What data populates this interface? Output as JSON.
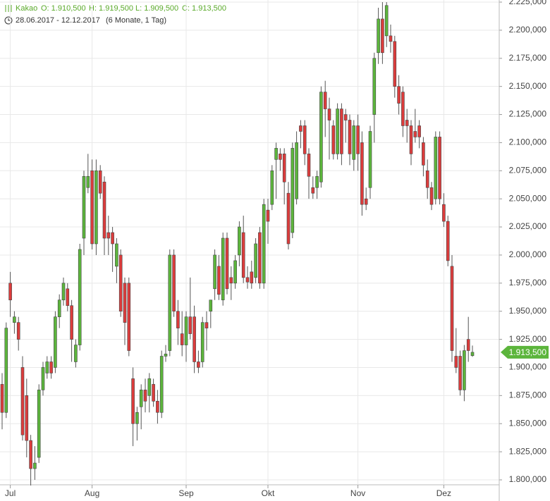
{
  "chart_data": {
    "type": "candlestick",
    "header": {
      "name": "Kakao",
      "open": "O: 1.910,500",
      "high": "H: 1.919,500",
      "low": "L: 1.909,500",
      "close": "C: 1.913,500",
      "period": "28.06.2017 - 12.12.2017",
      "span": "(6 Monate, 1 Tag)"
    },
    "up_color": "#5cb53c",
    "down_color": "#dc3c3c",
    "grid": true,
    "last_value": 1913.5,
    "last_label": "1.913,500",
    "ylim": [
      1800,
      2225
    ],
    "yticks": [
      {
        "value": 1800,
        "label": "1.800,000"
      },
      {
        "value": 1825,
        "label": "1.825,000"
      },
      {
        "value": 1850,
        "label": "1.850,000"
      },
      {
        "value": 1875,
        "label": "1.875,000"
      },
      {
        "value": 1900,
        "label": "1.900,000"
      },
      {
        "value": 1925,
        "label": "1.925,000"
      },
      {
        "value": 1950,
        "label": "1.950,000"
      },
      {
        "value": 1975,
        "label": "1.975,000"
      },
      {
        "value": 2000,
        "label": "2.000,000"
      },
      {
        "value": 2025,
        "label": "2.025,000"
      },
      {
        "value": 2050,
        "label": "2.050,000"
      },
      {
        "value": 2075,
        "label": "2.075,000"
      },
      {
        "value": 2100,
        "label": "2.100,000"
      },
      {
        "value": 2125,
        "label": "2.125,000"
      },
      {
        "value": 2150,
        "label": "2.150,000"
      },
      {
        "value": 2175,
        "label": "2.175,000"
      },
      {
        "value": 2200,
        "label": "2.200,000"
      },
      {
        "value": 2225,
        "label": "2.225,000"
      }
    ],
    "categories": [
      null,
      null,
      "Jul",
      null,
      null,
      null,
      null,
      null,
      null,
      null,
      null,
      null,
      null,
      null,
      null,
      null,
      null,
      null,
      null,
      null,
      null,
      null,
      "Aug",
      null,
      null,
      null,
      null,
      null,
      null,
      null,
      null,
      null,
      null,
      null,
      null,
      null,
      null,
      null,
      null,
      null,
      null,
      null,
      null,
      null,
      null,
      "Sep",
      null,
      null,
      null,
      null,
      null,
      null,
      null,
      null,
      null,
      null,
      null,
      null,
      null,
      null,
      null,
      null,
      null,
      null,
      null,
      "Okt",
      null,
      null,
      null,
      null,
      null,
      null,
      null,
      null,
      null,
      null,
      null,
      null,
      null,
      null,
      null,
      null,
      null,
      null,
      null,
      null,
      null,
      "Nov",
      null,
      null,
      null,
      null,
      null,
      null,
      null,
      null,
      null,
      null,
      null,
      null,
      null,
      null,
      null,
      null,
      null,
      null,
      null,
      null,
      "Dez",
      null,
      null,
      null,
      null,
      null,
      null,
      null
    ],
    "open": [
      1885,
      1860,
      1975,
      1940,
      1940,
      1900,
      1875,
      1835,
      1810,
      1820,
      1880,
      1895,
      1905,
      1900,
      1945,
      1960,
      1970,
      1955,
      1905,
      1920,
      2015,
      2060,
      2075,
      2010,
      2075,
      2065,
      2020,
      2020,
      1990,
      2000,
      1975,
      1975,
      1890,
      1850,
      1865,
      1880,
      1875,
      1885,
      1870,
      1860,
      1910,
      1915,
      2000,
      1950,
      1930,
      1920,
      1945,
      1945,
      1905,
      1905,
      1940,
      1950,
      1970,
      1990,
      1960,
      2015,
      1980,
      1975,
      2000,
      2020,
      1980,
      1985,
      1980,
      2020,
      1975,
      2040,
      2045,
      2085,
      2090,
      2090,
      2055,
      2020,
      2050,
      2115,
      2115,
      2090,
      2060,
      2060,
      2065,
      2145,
      2130,
      2115,
      2090,
      2130,
      2125,
      2120,
      2085,
      2115,
      2100,
      2050,
      2060,
      2125,
      2180,
      2210,
      2195,
      2195,
      2190,
      2150,
      2145,
      2120,
      2115,
      2110,
      2115,
      2100,
      2075,
      2060,
      2050,
      2105,
      2045,
      2030,
      1990,
      1910,
      1910,
      1880,
      1925,
      1910.5
    ],
    "high": [
      1895,
      1940,
      1985,
      1950,
      1945,
      1910,
      1890,
      1840,
      1830,
      1885,
      1905,
      1910,
      1910,
      1950,
      1965,
      1980,
      1975,
      1960,
      1925,
      2010,
      2075,
      2090,
      2085,
      2085,
      2080,
      2070,
      2035,
      2025,
      2015,
      2005,
      1980,
      1980,
      1900,
      1865,
      1885,
      1890,
      1895,
      1890,
      1880,
      1915,
      1920,
      2005,
      2005,
      1960,
      1950,
      1950,
      1980,
      1955,
      1915,
      1945,
      1950,
      1960,
      2005,
      2000,
      2020,
      2020,
      1990,
      2000,
      2030,
      2035,
      1990,
      1995,
      2015,
      2025,
      2050,
      2050,
      2080,
      2100,
      2095,
      2095,
      2065,
      2100,
      2110,
      2120,
      2120,
      2095,
      2070,
      2075,
      2150,
      2155,
      2140,
      2120,
      2135,
      2135,
      2130,
      2125,
      2120,
      2125,
      2110,
      2060,
      2115,
      2180,
      2220,
      2225,
      2225,
      2205,
      2195,
      2160,
      2150,
      2130,
      2120,
      2130,
      2120,
      2105,
      2085,
      2065,
      2110,
      2110,
      2055,
      2035,
      2000,
      1935,
      1915,
      1920,
      1945,
      1919.5
    ],
    "low": [
      1845,
      1855,
      1945,
      1930,
      1915,
      1835,
      1820,
      1795,
      1800,
      1815,
      1875,
      1890,
      1890,
      1895,
      1935,
      1955,
      1950,
      1905,
      1900,
      1915,
      2000,
      2055,
      2005,
      2000,
      2050,
      2000,
      2000,
      1985,
      1975,
      1945,
      1920,
      1910,
      1830,
      1835,
      1845,
      1860,
      1860,
      1865,
      1850,
      1855,
      1905,
      1910,
      1945,
      1920,
      1910,
      1905,
      1925,
      1895,
      1895,
      1900,
      1915,
      1935,
      1960,
      1960,
      1955,
      1965,
      1960,
      1970,
      1990,
      1975,
      1970,
      1970,
      1975,
      1970,
      1970,
      2010,
      2040,
      2050,
      2075,
      2045,
      2005,
      2015,
      2045,
      2095,
      2080,
      2050,
      2050,
      2050,
      2060,
      2105,
      2085,
      2085,
      2085,
      2080,
      2100,
      2080,
      2075,
      2075,
      2035,
      2040,
      2050,
      2100,
      2170,
      2170,
      2185,
      2180,
      2140,
      2125,
      2105,
      2100,
      2080,
      2100,
      2095,
      2070,
      2050,
      2040,
      2045,
      2045,
      2025,
      1990,
      1905,
      1895,
      1875,
      1870,
      1905,
      1909.5
    ],
    "close": [
      1860,
      1935,
      1960,
      1945,
      1925,
      1840,
      1835,
      1810,
      1815,
      1880,
      1900,
      1905,
      1895,
      1945,
      1960,
      1975,
      1955,
      1925,
      1920,
      2005,
      2070,
      2070,
      2010,
      2075,
      2055,
      2015,
      2015,
      2010,
      2010,
      1950,
      1940,
      1915,
      1850,
      1860,
      1880,
      1870,
      1890,
      1870,
      1860,
      1910,
      1912,
      2000,
      1950,
      1935,
      1920,
      1945,
      1930,
      1905,
      1900,
      1940,
      1935,
      1960,
      2000,
      1965,
      2015,
      1970,
      1975,
      1995,
      2025,
      1980,
      1976,
      1975,
      2010,
      1975,
      2045,
      2030,
      2075,
      2095,
      2085,
      2065,
      2010,
      2095,
      2100,
      2110,
      2090,
      2070,
      2055,
      2070,
      2145,
      2130,
      2120,
      2090,
      2130,
      2090,
      2120,
      2090,
      2115,
      2090,
      2045,
      2045,
      2110,
      2175,
      2210,
      2180,
      2222,
      2190,
      2150,
      2135,
      2115,
      2115,
      2090,
      2105,
      2105,
      2080,
      2060,
      2045,
      2105,
      2050,
      2030,
      1995,
      1915,
      1900,
      1880,
      1915,
      1915,
      1913.5
    ]
  }
}
